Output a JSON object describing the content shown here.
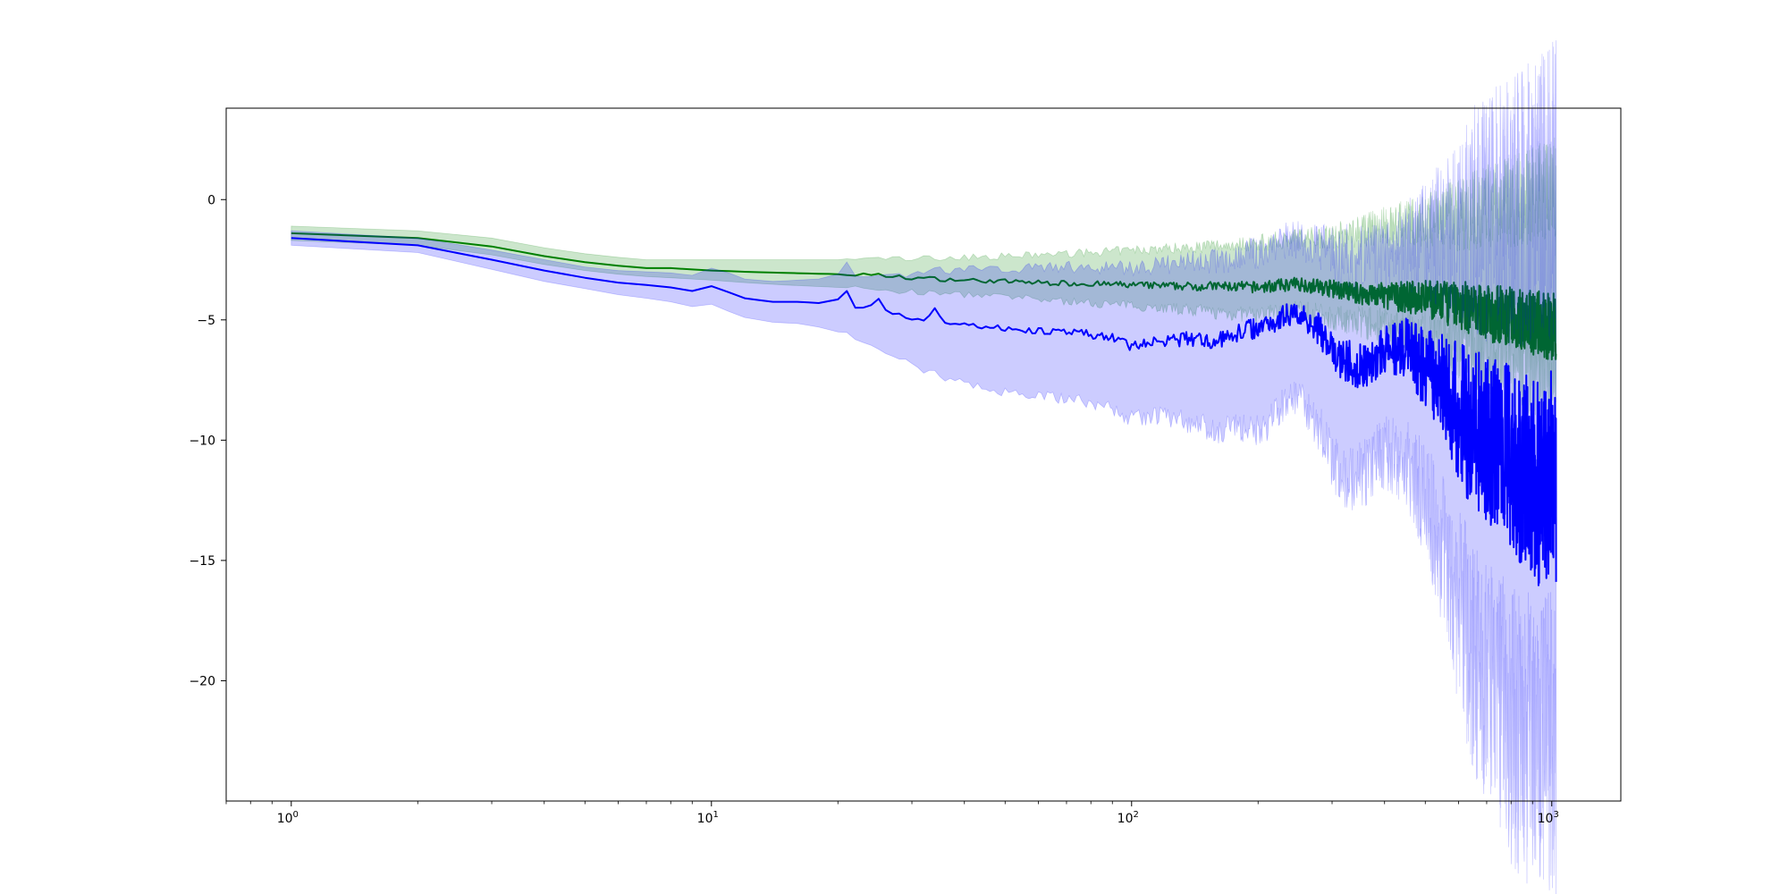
{
  "chart_data": {
    "type": "line",
    "title": "",
    "xlabel": "",
    "ylabel": "",
    "x_scale": "log",
    "xlim": [
      0.7,
      1460
    ],
    "ylim": [
      -25,
      3.8
    ],
    "grid": false,
    "x_ticks": [
      {
        "value": 1,
        "base": "10",
        "exp": "0"
      },
      {
        "value": 10,
        "base": "10",
        "exp": "1"
      },
      {
        "value": 100,
        "base": "10",
        "exp": "2"
      },
      {
        "value": 1000,
        "base": "10",
        "exp": "3"
      }
    ],
    "y_ticks": [
      {
        "value": 0,
        "label": "0"
      },
      {
        "value": -5,
        "label": "−5"
      },
      {
        "value": -10,
        "label": "−10"
      },
      {
        "value": -15,
        "label": "−15"
      },
      {
        "value": -20,
        "label": "−20"
      }
    ],
    "series": [
      {
        "color": "#008000",
        "band_color": "#008000",
        "band_opacity": 0.2,
        "x": [
          1,
          2,
          3,
          4,
          5,
          6,
          7,
          8,
          10,
          12,
          15,
          20,
          25,
          30,
          40,
          50,
          60,
          80,
          100,
          130,
          160,
          200,
          250,
          300,
          350,
          400,
          500,
          600,
          700,
          800,
          900,
          1000,
          1024
        ],
        "mean": [
          -1.4,
          -1.6,
          -1.95,
          -2.35,
          -2.6,
          -2.75,
          -2.85,
          -2.85,
          -2.95,
          -3.0,
          -3.05,
          -3.1,
          -3.15,
          -3.25,
          -3.35,
          -3.4,
          -3.45,
          -3.5,
          -3.55,
          -3.6,
          -3.6,
          -3.65,
          -3.5,
          -3.7,
          -3.9,
          -4.0,
          -4.1,
          -4.4,
          -4.7,
          -4.9,
          -5.1,
          -5.3,
          -5.2
        ],
        "lower": [
          -1.7,
          -1.9,
          -2.3,
          -2.7,
          -2.95,
          -3.1,
          -3.2,
          -3.25,
          -3.35,
          -3.45,
          -3.55,
          -3.65,
          -3.75,
          -3.85,
          -3.95,
          -4.05,
          -4.15,
          -4.3,
          -4.4,
          -4.55,
          -4.7,
          -4.8,
          -4.6,
          -4.9,
          -5.1,
          -5.3,
          -5.6,
          -6.0,
          -6.4,
          -6.7,
          -6.9,
          -7.1,
          -7.0
        ],
        "upper": [
          -1.1,
          -1.3,
          -1.6,
          -2.0,
          -2.25,
          -2.4,
          -2.5,
          -2.5,
          -2.5,
          -2.5,
          -2.5,
          -2.5,
          -2.45,
          -2.45,
          -2.4,
          -2.35,
          -2.3,
          -2.2,
          -2.1,
          -2.0,
          -1.9,
          -1.8,
          -1.6,
          -1.5,
          -1.3,
          -1.1,
          -0.9,
          -0.6,
          -0.3,
          -0.1,
          0.2,
          0.4,
          0.5
        ]
      },
      {
        "color": "#0000ff",
        "band_color": "#0000ff",
        "band_opacity": 0.2,
        "x": [
          1,
          2,
          3,
          4,
          5,
          6,
          7,
          8,
          9,
          10,
          11,
          12,
          14,
          16,
          18,
          20,
          21,
          22,
          24,
          25,
          26,
          28,
          30,
          32,
          34,
          36,
          40,
          45,
          50,
          60,
          70,
          80,
          90,
          100,
          120,
          140,
          160,
          180,
          200,
          220,
          240,
          260,
          280,
          300,
          330,
          360,
          400,
          450,
          500,
          550,
          600,
          650,
          700,
          750,
          800,
          850,
          900,
          950,
          1000,
          1024
        ],
        "mean": [
          -1.6,
          -1.9,
          -2.5,
          -2.95,
          -3.25,
          -3.45,
          -3.55,
          -3.65,
          -3.8,
          -3.6,
          -3.85,
          -4.1,
          -4.25,
          -4.25,
          -4.3,
          -4.15,
          -3.85,
          -4.5,
          -4.4,
          -4.2,
          -4.6,
          -4.75,
          -5.0,
          -5.05,
          -4.55,
          -5.1,
          -5.15,
          -5.3,
          -5.35,
          -5.45,
          -5.55,
          -5.6,
          -5.75,
          -6.1,
          -5.85,
          -5.8,
          -5.9,
          -5.5,
          -5.3,
          -5.0,
          -4.7,
          -4.9,
          -5.4,
          -6.4,
          -6.8,
          -6.9,
          -6.3,
          -6.2,
          -7.0,
          -7.6,
          -8.8,
          -9.6,
          -9.9,
          -10.3,
          -10.8,
          -11.2,
          -11.6,
          -12.0,
          -11.0,
          -12.0
        ],
        "lower": [
          -1.9,
          -2.2,
          -2.9,
          -3.4,
          -3.7,
          -3.95,
          -4.1,
          -4.25,
          -4.45,
          -4.35,
          -4.65,
          -4.9,
          -5.1,
          -5.15,
          -5.3,
          -5.5,
          -5.4,
          -5.9,
          -6.0,
          -6.1,
          -6.4,
          -6.6,
          -6.9,
          -7.1,
          -7.2,
          -7.4,
          -7.6,
          -7.85,
          -8.0,
          -8.1,
          -8.3,
          -8.45,
          -8.7,
          -9.1,
          -9.0,
          -9.3,
          -9.6,
          -9.5,
          -9.6,
          -9.0,
          -8.2,
          -8.6,
          -9.5,
          -11.0,
          -11.6,
          -11.3,
          -10.5,
          -11.0,
          -12.5,
          -14.5,
          -17.0,
          -19.0,
          -20.5,
          -21.0,
          -21.8,
          -22.2,
          -22.7,
          -22.9,
          -22.5,
          -22.8
        ],
        "upper": [
          -1.3,
          -1.6,
          -2.1,
          -2.5,
          -2.8,
          -2.95,
          -3.0,
          -3.05,
          -3.15,
          -2.85,
          -3.05,
          -3.3,
          -3.4,
          -3.35,
          -3.3,
          -3.1,
          -2.7,
          -3.1,
          -3.1,
          -3.1,
          -3.1,
          -3.1,
          -3.1,
          -3.0,
          -2.9,
          -2.95,
          -2.9,
          -2.9,
          -2.85,
          -2.85,
          -2.8,
          -2.8,
          -2.8,
          -2.85,
          -2.7,
          -2.6,
          -2.6,
          -2.4,
          -2.2,
          -1.9,
          -1.6,
          -1.8,
          -2.0,
          -2.3,
          -2.4,
          -2.5,
          -2.2,
          -1.9,
          -1.7,
          -1.4,
          -1.2,
          -1.0,
          -0.8,
          -0.6,
          -0.4,
          -0.2,
          0.0,
          0.2,
          0.4,
          0.4
        ]
      }
    ]
  }
}
